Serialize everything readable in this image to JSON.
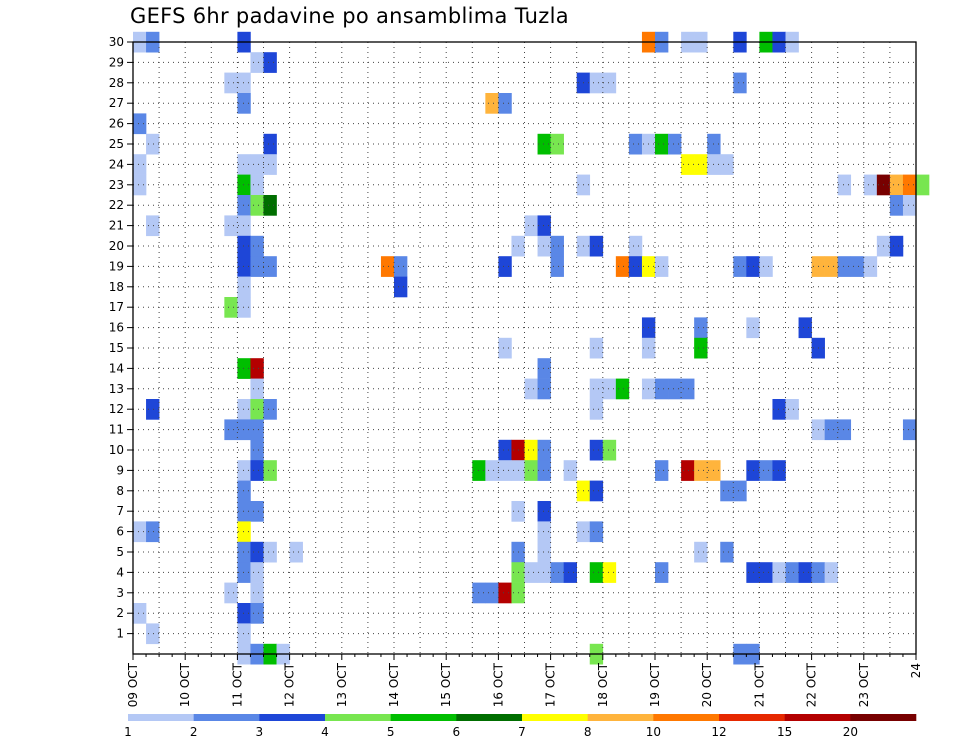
{
  "chart_data": {
    "type": "heatmap",
    "title": "GEFS 6hr padavine po ansamblima Tuzla",
    "x_tick_labels": [
      "09 OCT",
      "10 OCT",
      "11 OCT",
      "12 OCT",
      "13 OCT",
      "14 OCT",
      "15 OCT",
      "16 OCT",
      "17 OCT",
      "18 OCT",
      "19 OCT",
      "20 OCT",
      "21 OCT",
      "22 OCT",
      "23 OCT",
      "24"
    ],
    "y_tick_labels": [
      "1",
      "2",
      "3",
      "4",
      "5",
      "6",
      "7",
      "8",
      "9",
      "10",
      "11",
      "12",
      "13",
      "14",
      "15",
      "16",
      "17",
      "18",
      "19",
      "20",
      "21",
      "22",
      "23",
      "24",
      "25",
      "26",
      "27",
      "28",
      "29",
      "30"
    ],
    "x_step_hours": 6,
    "member_range": [
      0,
      30
    ],
    "grid": true,
    "legend": {
      "position": "bottom",
      "labels": [
        "1",
        "2",
        "3",
        "4",
        "5",
        "6",
        "7",
        "8",
        "10",
        "12",
        "15",
        "20"
      ],
      "colors": [
        "#b4c8f5",
        "#5a87e6",
        "#1e46d7",
        "#78e650",
        "#00be00",
        "#006e00",
        "#ffff00",
        "#ffb43c",
        "#ff7800",
        "#e62800",
        "#b40000",
        "#780000"
      ]
    },
    "cells": [
      {
        "m": 30,
        "t": [
          [
            0,
            1
          ],
          [
            1,
            2
          ],
          [
            8,
            3
          ],
          [
            39,
            9
          ],
          [
            40,
            2
          ],
          [
            42,
            1
          ],
          [
            43,
            1
          ],
          [
            46,
            3
          ],
          [
            48,
            5
          ],
          [
            49,
            3
          ],
          [
            50,
            1
          ]
        ]
      },
      {
        "m": 29,
        "t": [
          [
            9,
            1
          ],
          [
            10,
            3
          ]
        ]
      },
      {
        "m": 28,
        "t": [
          [
            7,
            1
          ],
          [
            8,
            1
          ],
          [
            34,
            3
          ],
          [
            35,
            1
          ],
          [
            36,
            1
          ],
          [
            46,
            2
          ]
        ]
      },
      {
        "m": 27,
        "t": [
          [
            27,
            8
          ],
          [
            28,
            2
          ],
          [
            8,
            2
          ]
        ]
      },
      {
        "m": 26,
        "t": [
          [
            0,
            2
          ]
        ]
      },
      {
        "m": 25,
        "t": [
          [
            1,
            1
          ],
          [
            10,
            3
          ],
          [
            31,
            5
          ],
          [
            32,
            4
          ],
          [
            38,
            2
          ],
          [
            39,
            1
          ],
          [
            40,
            5
          ],
          [
            41,
            2
          ],
          [
            44,
            2
          ]
        ]
      },
      {
        "m": 24,
        "t": [
          [
            0,
            1
          ],
          [
            8,
            1
          ],
          [
            9,
            1
          ],
          [
            10,
            1
          ],
          [
            42,
            7
          ],
          [
            43,
            7
          ],
          [
            44,
            1
          ],
          [
            45,
            1
          ]
        ]
      },
      {
        "m": 23,
        "t": [
          [
            0,
            1
          ],
          [
            8,
            5
          ],
          [
            9,
            1
          ],
          [
            34,
            1
          ],
          [
            54,
            1
          ],
          [
            56,
            1
          ],
          [
            57,
            12
          ],
          [
            58,
            8
          ],
          [
            59,
            9
          ],
          [
            60,
            4
          ]
        ]
      },
      {
        "m": 22,
        "t": [
          [
            8,
            2
          ],
          [
            9,
            4
          ],
          [
            10,
            6
          ],
          [
            58,
            2
          ],
          [
            59,
            1
          ]
        ]
      },
      {
        "m": 21,
        "t": [
          [
            1,
            1
          ],
          [
            7,
            1
          ],
          [
            8,
            1
          ],
          [
            30,
            1
          ],
          [
            31,
            3
          ]
        ]
      },
      {
        "m": 20,
        "t": [
          [
            8,
            3
          ],
          [
            9,
            2
          ],
          [
            29,
            1
          ],
          [
            31,
            1
          ],
          [
            32,
            2
          ],
          [
            34,
            1
          ],
          [
            35,
            3
          ],
          [
            38,
            1
          ],
          [
            57,
            1
          ],
          [
            58,
            3
          ]
        ]
      },
      {
        "m": 19,
        "t": [
          [
            8,
            3
          ],
          [
            9,
            2
          ],
          [
            10,
            2
          ],
          [
            19,
            9
          ],
          [
            20,
            2
          ],
          [
            28,
            3
          ],
          [
            32,
            2
          ],
          [
            37,
            9
          ],
          [
            38,
            3
          ],
          [
            39,
            7
          ],
          [
            40,
            1
          ],
          [
            46,
            2
          ],
          [
            47,
            3
          ],
          [
            48,
            1
          ],
          [
            52,
            8
          ],
          [
            53,
            8
          ],
          [
            54,
            2
          ],
          [
            55,
            2
          ],
          [
            56,
            1
          ]
        ]
      },
      {
        "m": 18,
        "t": [
          [
            8,
            1
          ],
          [
            20,
            3
          ]
        ]
      },
      {
        "m": 17,
        "t": [
          [
            7,
            4
          ],
          [
            8,
            1
          ]
        ]
      },
      {
        "m": 16,
        "t": [
          [
            39,
            3
          ],
          [
            43,
            2
          ],
          [
            47,
            1
          ],
          [
            51,
            3
          ]
        ]
      },
      {
        "m": 15,
        "t": [
          [
            28,
            1
          ],
          [
            35,
            1
          ],
          [
            39,
            1
          ],
          [
            43,
            5
          ],
          [
            52,
            3
          ]
        ]
      },
      {
        "m": 14,
        "t": [
          [
            8,
            5
          ],
          [
            9,
            11
          ],
          [
            31,
            2
          ]
        ]
      },
      {
        "m": 13,
        "t": [
          [
            9,
            1
          ],
          [
            30,
            1
          ],
          [
            31,
            2
          ],
          [
            35,
            1
          ],
          [
            36,
            1
          ],
          [
            37,
            5
          ],
          [
            39,
            1
          ],
          [
            40,
            2
          ],
          [
            41,
            2
          ],
          [
            42,
            2
          ]
        ]
      },
      {
        "m": 12,
        "t": [
          [
            1,
            3
          ],
          [
            8,
            1
          ],
          [
            9,
            4
          ],
          [
            10,
            2
          ],
          [
            35,
            1
          ],
          [
            49,
            3
          ],
          [
            50,
            1
          ]
        ]
      },
      {
        "m": 11,
        "t": [
          [
            7,
            2
          ],
          [
            8,
            2
          ],
          [
            9,
            2
          ],
          [
            52,
            1
          ],
          [
            53,
            2
          ],
          [
            54,
            2
          ],
          [
            59,
            2
          ]
        ]
      },
      {
        "m": 10,
        "t": [
          [
            9,
            2
          ],
          [
            28,
            3
          ],
          [
            29,
            11
          ],
          [
            30,
            7
          ],
          [
            31,
            2
          ],
          [
            35,
            3
          ],
          [
            36,
            4
          ]
        ]
      },
      {
        "m": 9,
        "t": [
          [
            8,
            1
          ],
          [
            9,
            3
          ],
          [
            10,
            4
          ],
          [
            26,
            5
          ],
          [
            27,
            1
          ],
          [
            28,
            1
          ],
          [
            29,
            1
          ],
          [
            30,
            4
          ],
          [
            31,
            2
          ],
          [
            33,
            1
          ],
          [
            40,
            2
          ],
          [
            42,
            11
          ],
          [
            43,
            8
          ],
          [
            44,
            8
          ],
          [
            47,
            3
          ],
          [
            48,
            2
          ],
          [
            49,
            3
          ]
        ]
      },
      {
        "m": 8,
        "t": [
          [
            8,
            2
          ],
          [
            34,
            7
          ],
          [
            35,
            3
          ],
          [
            45,
            2
          ],
          [
            46,
            2
          ]
        ]
      },
      {
        "m": 7,
        "t": [
          [
            8,
            2
          ],
          [
            9,
            2
          ],
          [
            29,
            1
          ],
          [
            31,
            3
          ]
        ]
      },
      {
        "m": 6,
        "t": [
          [
            0,
            1
          ],
          [
            1,
            2
          ],
          [
            8,
            7
          ],
          [
            31,
            1
          ],
          [
            34,
            1
          ],
          [
            35,
            2
          ]
        ]
      },
      {
        "m": 5,
        "t": [
          [
            8,
            2
          ],
          [
            9,
            3
          ],
          [
            10,
            1
          ],
          [
            12,
            1
          ],
          [
            29,
            2
          ],
          [
            31,
            1
          ],
          [
            43,
            1
          ],
          [
            45,
            2
          ]
        ]
      },
      {
        "m": 4,
        "t": [
          [
            8,
            2
          ],
          [
            9,
            1
          ],
          [
            29,
            4
          ],
          [
            30,
            1
          ],
          [
            31,
            1
          ],
          [
            32,
            2
          ],
          [
            33,
            3
          ],
          [
            35,
            5
          ],
          [
            36,
            7
          ],
          [
            40,
            2
          ],
          [
            47,
            3
          ],
          [
            48,
            3
          ],
          [
            49,
            1
          ],
          [
            50,
            2
          ],
          [
            51,
            3
          ],
          [
            52,
            2
          ],
          [
            53,
            1
          ]
        ]
      },
      {
        "m": 3,
        "t": [
          [
            7,
            1
          ],
          [
            9,
            1
          ],
          [
            26,
            2
          ],
          [
            27,
            2
          ],
          [
            28,
            11
          ],
          [
            29,
            4
          ]
        ]
      },
      {
        "m": 2,
        "t": [
          [
            0,
            1
          ],
          [
            8,
            3
          ],
          [
            9,
            2
          ]
        ]
      },
      {
        "m": 1,
        "t": [
          [
            1,
            1
          ],
          [
            8,
            1
          ]
        ]
      },
      {
        "m": 0,
        "t": [
          [
            8,
            1
          ],
          [
            9,
            2
          ],
          [
            10,
            5
          ],
          [
            11,
            1
          ],
          [
            35,
            4
          ],
          [
            46,
            2
          ],
          [
            47,
            2
          ]
        ]
      }
    ]
  }
}
